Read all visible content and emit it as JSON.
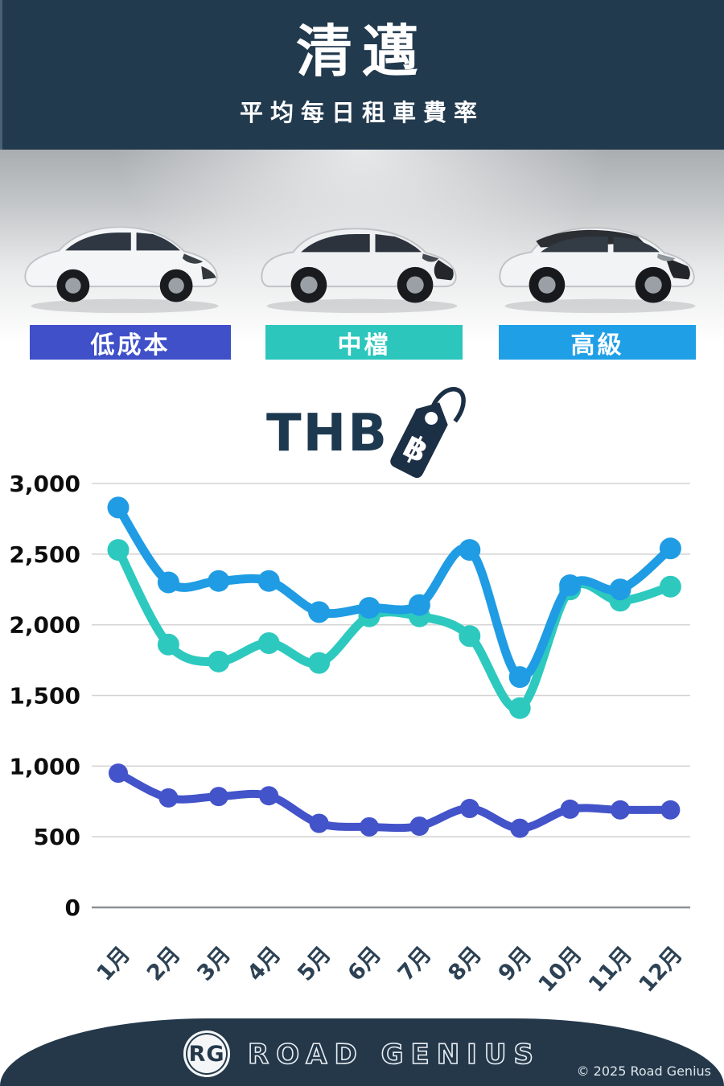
{
  "header": {
    "title": "清邁",
    "subtitle": "平均每日租車費率"
  },
  "tiers": [
    {
      "label": "低成本",
      "color": "#3f50c9",
      "car": "white-hatchback"
    },
    {
      "label": "中檔",
      "color": "#2cc6bd",
      "car": "white-suv"
    },
    {
      "label": "高級",
      "color": "#1f9fe6",
      "car": "white-suv-black-roof"
    }
  ],
  "currency": {
    "label": "THB",
    "symbol": "฿",
    "tag_color": "#1b2f45"
  },
  "chart_data": {
    "type": "line",
    "categories": [
      "1月",
      "2月",
      "3月",
      "4月",
      "5月",
      "6月",
      "7月",
      "8月",
      "9月",
      "10月",
      "11月",
      "12月"
    ],
    "series": [
      {
        "name": "低成本",
        "color": "#4353c9",
        "values": [
          950,
          775,
          785,
          790,
          595,
          570,
          575,
          700,
          560,
          695,
          690,
          690
        ]
      },
      {
        "name": "中檔",
        "color": "#2dc9bf",
        "values": [
          2530,
          1860,
          1740,
          1870,
          1730,
          2060,
          2060,
          1920,
          1410,
          2250,
          2170,
          2270
        ]
      },
      {
        "name": "高級",
        "color": "#1f9ce4",
        "values": [
          2830,
          2300,
          2310,
          2310,
          2090,
          2120,
          2140,
          2530,
          1630,
          2280,
          2250,
          2540
        ]
      }
    ],
    "ylim": [
      0,
      3000
    ],
    "yticks": [
      0,
      500,
      1000,
      1500,
      2000,
      2500,
      3000
    ],
    "ytick_labels": [
      "0",
      "500",
      "1,000",
      "1,500",
      "2,000",
      "2,500",
      "3,000"
    ],
    "grid": true,
    "legend_position": "none",
    "unit": "THB",
    "title": "",
    "xlabel": "",
    "ylabel": ""
  },
  "footer": {
    "logo_initials": "RG",
    "brand": "ROAD GENIUS",
    "copyright": "© 2025 Road Genius"
  }
}
